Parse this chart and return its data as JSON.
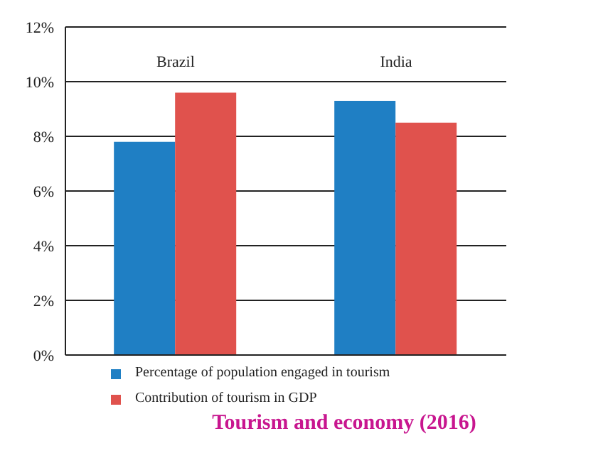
{
  "chart_data": {
    "type": "bar",
    "title": "Tourism and economy (2016)",
    "categories": [
      "Brazil",
      "India"
    ],
    "series": [
      {
        "name": "Percentage of population engaged in tourism",
        "color": "#1f7fc4",
        "values": [
          7.8,
          9.3
        ]
      },
      {
        "name": "Contribution of tourism in GDP",
        "color": "#e0524d",
        "values": [
          9.6,
          8.5
        ]
      }
    ],
    "ylim": [
      0,
      12
    ],
    "yticks": [
      {
        "value": 0,
        "label": "0%"
      },
      {
        "value": 2,
        "label": "2%"
      },
      {
        "value": 4,
        "label": "4%"
      },
      {
        "value": 6,
        "label": "6%"
      },
      {
        "value": 8,
        "label": "8%"
      },
      {
        "value": 10,
        "label": "10%"
      },
      {
        "value": 12,
        "label": "12%"
      }
    ],
    "grid": "y",
    "legend": "bottom"
  }
}
